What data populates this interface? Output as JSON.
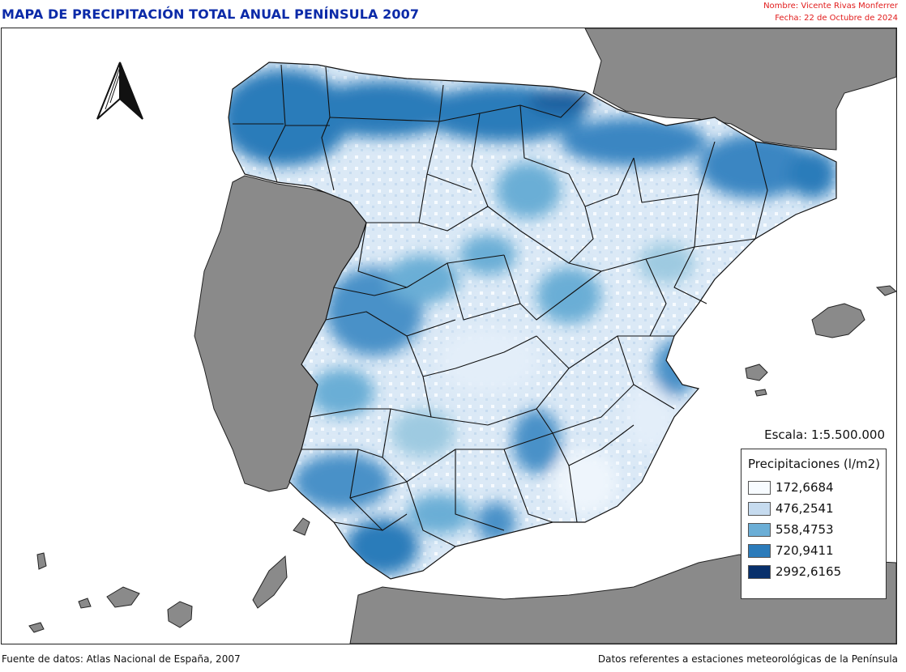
{
  "header": {
    "title": "MAPA DE PRECIPITACIÓN TOTAL ANUAL PENÍNSULA 2007",
    "author": "Nombre: Vicente Rivas Monferrer",
    "date": "Fecha: 22 de Octubre de 2024"
  },
  "map": {
    "scale_text": "Escala: 1:5.500.000",
    "colors": {
      "land_outside": "#8a8a8a",
      "sea": "#ffffff",
      "class_1": "#f7fbff",
      "class_2": "#c6dbef",
      "class_3": "#6baed6",
      "class_4": "#2b7bba",
      "class_5": "#08306b"
    },
    "legend": {
      "title": "Precipitaciones (l/m2)",
      "items": [
        {
          "label": "172,6684",
          "color": "#f7fbff"
        },
        {
          "label": "476,2541",
          "color": "#c6dbef"
        },
        {
          "label": "558,4753",
          "color": "#6baed6"
        },
        {
          "label": "720,9411",
          "color": "#2b7bba"
        },
        {
          "label": "2992,6165",
          "color": "#08306b"
        }
      ]
    },
    "north_arrow_icon": "north-arrow-icon"
  },
  "footer": {
    "source": "Fuente de datos: Atlas Nacional de España, 2007",
    "note": "Datos referentes a estaciones meteorológicas de la Península"
  }
}
